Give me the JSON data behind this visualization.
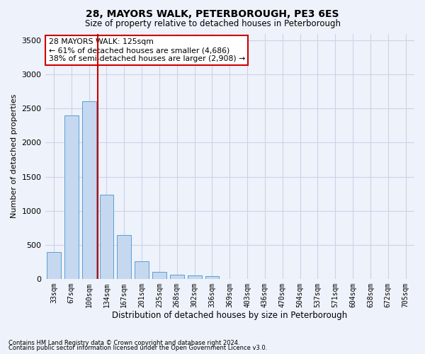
{
  "title": "28, MAYORS WALK, PETERBOROUGH, PE3 6ES",
  "subtitle": "Size of property relative to detached houses in Peterborough",
  "xlabel": "Distribution of detached houses by size in Peterborough",
  "ylabel": "Number of detached properties",
  "footnote1": "Contains HM Land Registry data © Crown copyright and database right 2024.",
  "footnote2": "Contains public sector information licensed under the Open Government Licence v3.0.",
  "categories": [
    "33sqm",
    "67sqm",
    "100sqm",
    "134sqm",
    "167sqm",
    "201sqm",
    "235sqm",
    "268sqm",
    "302sqm",
    "336sqm",
    "369sqm",
    "403sqm",
    "436sqm",
    "470sqm",
    "504sqm",
    "537sqm",
    "571sqm",
    "604sqm",
    "638sqm",
    "672sqm",
    "705sqm"
  ],
  "values": [
    390,
    2400,
    2610,
    1240,
    640,
    260,
    100,
    60,
    55,
    45,
    0,
    0,
    0,
    0,
    0,
    0,
    0,
    0,
    0,
    0,
    0
  ],
  "bar_color": "#c5d8f0",
  "bar_edge_color": "#5a9fd4",
  "grid_color": "#d0d0e8",
  "background_color": "#eef2fa",
  "vline_color": "#cc0000",
  "annotation_text": "28 MAYORS WALK: 125sqm\n← 61% of detached houses are smaller (4,686)\n38% of semi-detached houses are larger (2,908) →",
  "annotation_box_color": "white",
  "annotation_box_edge": "#cc0000",
  "ylim": [
    0,
    3600
  ],
  "yticks": [
    0,
    500,
    1000,
    1500,
    2000,
    2500,
    3000,
    3500
  ]
}
